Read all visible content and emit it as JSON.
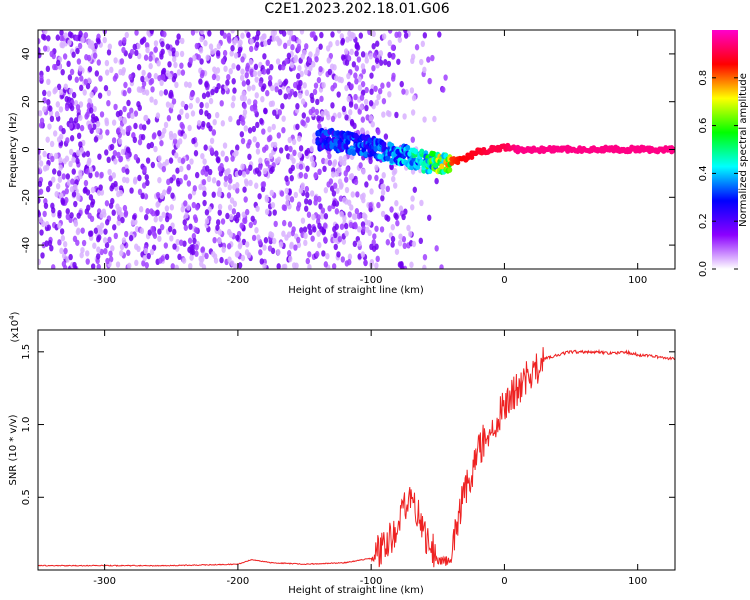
{
  "title": "C2E1.2023.202.18.01.G06",
  "chart_data": [
    {
      "type": "heatmap",
      "title": "C2E1.2023.202.18.01.G06",
      "xlabel": "Height of straight line (km)",
      "ylabel": "Frequency (Hz)",
      "xlim": [
        -350,
        128
      ],
      "ylim": [
        -50,
        50
      ],
      "xticks": [
        -300,
        -200,
        -100,
        0,
        100
      ],
      "yticks": [
        -40,
        -20,
        0,
        20,
        40
      ],
      "colorbar": {
        "label": "Normalized spectral amplitude",
        "range": [
          0.0,
          1.0
        ],
        "ticks": [
          "0.0",
          "0.2",
          "0.4",
          "0.6",
          "0.8"
        ],
        "colormap": [
          "#ffffff",
          "#8b00ff",
          "#0000ff",
          "#00ffff",
          "#00ff00",
          "#ffff00",
          "#ff0000",
          "#ff00cc"
        ]
      },
      "ridge": {
        "x": [
          -130,
          -100,
          -80,
          -60,
          -50,
          -40,
          -30,
          -20,
          -10,
          0,
          10,
          50,
          100,
          128
        ],
        "y": [
          4,
          1,
          -2,
          -5,
          -6,
          -5,
          -4,
          -1,
          0,
          1,
          0,
          0,
          0,
          0
        ],
        "amplitude": [
          0.3,
          0.35,
          0.4,
          0.55,
          0.75,
          0.85,
          0.9,
          0.92,
          0.95,
          0.95,
          1.0,
          1.0,
          1.0,
          1.0
        ]
      },
      "grid": false
    },
    {
      "type": "line",
      "xlabel": "Height of straight line (km)",
      "ylabel": "SNR (10 * v/v)",
      "y_multiplier_label": "(x10",
      "y_multiplier_exp": "4",
      "xlim": [
        -350,
        128
      ],
      "ylim": [
        0,
        1.65
      ],
      "xticks": [
        -300,
        -200,
        -100,
        0,
        100
      ],
      "yticks": [
        "0.5",
        "1.0",
        "1.5"
      ],
      "ytick_values": [
        0.5,
        1.0,
        1.5
      ],
      "series": [
        {
          "color": "#ee2222",
          "x": [
            -350,
            -300,
            -250,
            -200,
            -190,
            -175,
            -150,
            -120,
            -100,
            -90,
            -80,
            -75,
            -70,
            -65,
            -60,
            -55,
            -50,
            -45,
            -40,
            -35,
            -30,
            -25,
            -20,
            -15,
            -10,
            -5,
            0,
            5,
            10,
            15,
            20,
            25,
            30,
            40,
            50,
            60,
            70,
            80,
            90,
            100,
            110,
            128
          ],
          "y": [
            0.03,
            0.03,
            0.03,
            0.04,
            0.07,
            0.05,
            0.04,
            0.05,
            0.08,
            0.15,
            0.3,
            0.45,
            0.55,
            0.4,
            0.25,
            0.15,
            0.08,
            0.06,
            0.05,
            0.35,
            0.55,
            0.65,
            0.8,
            0.9,
            0.95,
            1.05,
            1.15,
            1.2,
            1.25,
            1.3,
            1.35,
            1.4,
            1.45,
            1.48,
            1.5,
            1.5,
            1.5,
            1.49,
            1.5,
            1.48,
            1.47,
            1.45
          ]
        }
      ],
      "grid": false
    }
  ]
}
